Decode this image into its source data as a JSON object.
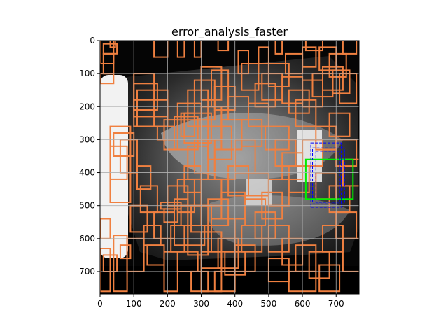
{
  "title": "error_analysis_faster",
  "colors": {
    "prediction_box": "#f08040",
    "ground_truth_box": "#00ee00",
    "match_box": "#0000ff",
    "image_bg": "#050505",
    "grid": "#b0b0b0"
  },
  "axes": {
    "x_ticks": [
      0,
      100,
      200,
      300,
      400,
      500,
      600,
      700
    ],
    "y_ticks": [
      0,
      100,
      200,
      300,
      400,
      500,
      600,
      700
    ],
    "xlim": [
      0,
      768
    ],
    "ylim": [
      768,
      0
    ]
  },
  "ground_truth_boxes": [
    [
      610,
      360,
      750,
      480
    ]
  ],
  "match_boxes": [
    [
      625,
      310,
      715,
      505
    ],
    [
      630,
      325,
      725,
      495
    ],
    [
      640,
      335,
      710,
      490
    ]
  ],
  "prediction_boxes": [
    [
      0,
      0,
      40,
      70
    ],
    [
      30,
      0,
      45,
      20
    ],
    [
      10,
      10,
      50,
      40
    ],
    [
      10,
      40,
      40,
      100
    ],
    [
      0,
      100,
      40,
      130
    ],
    [
      100,
      100,
      160,
      260
    ],
    [
      100,
      130,
      170,
      210
    ],
    [
      110,
      150,
      200,
      260
    ],
    [
      100,
      180,
      200,
      230
    ],
    [
      30,
      260,
      90,
      490
    ],
    [
      40,
      280,
      100,
      350
    ],
    [
      60,
      300,
      110,
      400
    ],
    [
      30,
      320,
      80,
      420
    ],
    [
      190,
      240,
      230,
      330
    ],
    [
      170,
      260,
      220,
      300
    ],
    [
      240,
      220,
      280,
      290
    ],
    [
      220,
      230,
      290,
      330
    ],
    [
      180,
      490,
      240,
      510
    ],
    [
      190,
      510,
      230,
      550
    ],
    [
      160,
      520,
      220,
      600
    ],
    [
      40,
      590,
      80,
      760
    ],
    [
      0,
      630,
      30,
      760
    ],
    [
      10,
      650,
      50,
      700
    ],
    [
      60,
      620,
      90,
      660
    ],
    [
      300,
      80,
      360,
      180
    ],
    [
      330,
      90,
      380,
      200
    ],
    [
      280,
      120,
      340,
      240
    ],
    [
      260,
      150,
      320,
      260
    ],
    [
      230,
      190,
      300,
      240
    ],
    [
      250,
      220,
      330,
      310
    ],
    [
      300,
      200,
      360,
      300
    ],
    [
      320,
      260,
      390,
      360
    ],
    [
      280,
      300,
      340,
      400
    ],
    [
      260,
      320,
      320,
      420
    ],
    [
      250,
      380,
      300,
      460
    ],
    [
      230,
      420,
      280,
      520
    ],
    [
      220,
      480,
      260,
      620
    ],
    [
      240,
      500,
      300,
      560
    ],
    [
      260,
      560,
      320,
      650
    ],
    [
      300,
      580,
      360,
      690
    ],
    [
      330,
      540,
      400,
      640
    ],
    [
      350,
      600,
      410,
      690
    ],
    [
      370,
      640,
      430,
      710
    ],
    [
      400,
      620,
      460,
      700
    ],
    [
      360,
      460,
      430,
      540
    ],
    [
      380,
      380,
      440,
      470
    ],
    [
      400,
      300,
      460,
      400
    ],
    [
      420,
      240,
      480,
      320
    ],
    [
      440,
      190,
      500,
      260
    ],
    [
      460,
      130,
      520,
      200
    ],
    [
      480,
      100,
      540,
      180
    ],
    [
      420,
      70,
      470,
      150
    ],
    [
      500,
      70,
      560,
      140
    ],
    [
      540,
      110,
      600,
      190
    ],
    [
      560,
      150,
      620,
      220
    ],
    [
      580,
      180,
      640,
      260
    ],
    [
      600,
      120,
      660,
      200
    ],
    [
      630,
      100,
      690,
      170
    ],
    [
      660,
      80,
      720,
      150
    ],
    [
      690,
      90,
      740,
      160
    ],
    [
      710,
      100,
      760,
      190
    ],
    [
      600,
      20,
      640,
      80
    ],
    [
      650,
      20,
      700,
      90
    ],
    [
      680,
      40,
      730,
      110
    ],
    [
      550,
      40,
      600,
      100
    ],
    [
      490,
      260,
      560,
      330
    ],
    [
      520,
      300,
      580,
      380
    ],
    [
      540,
      340,
      600,
      420
    ],
    [
      560,
      380,
      620,
      460
    ],
    [
      500,
      420,
      560,
      500
    ],
    [
      480,
      460,
      540,
      540
    ],
    [
      460,
      520,
      520,
      600
    ],
    [
      500,
      560,
      560,
      640
    ],
    [
      540,
      600,
      600,
      680
    ],
    [
      580,
      620,
      640,
      700
    ],
    [
      620,
      640,
      680,
      720
    ],
    [
      660,
      560,
      720,
      640
    ],
    [
      700,
      520,
      760,
      600
    ],
    [
      680,
      440,
      740,
      520
    ],
    [
      640,
      400,
      700,
      480
    ],
    [
      600,
      300,
      660,
      380
    ],
    [
      640,
      260,
      700,
      330
    ],
    [
      680,
      220,
      740,
      290
    ],
    [
      700,
      300,
      760,
      380
    ],
    [
      720,
      360,
      770,
      440
    ],
    [
      720,
      600,
      770,
      700
    ],
    [
      650,
      680,
      710,
      760
    ],
    [
      560,
      700,
      640,
      760
    ],
    [
      500,
      660,
      560,
      730
    ],
    [
      420,
      560,
      480,
      640
    ],
    [
      430,
      480,
      490,
      560
    ],
    [
      440,
      400,
      500,
      470
    ],
    [
      340,
      330,
      400,
      420
    ],
    [
      360,
      240,
      420,
      330
    ],
    [
      380,
      170,
      440,
      240
    ],
    [
      340,
      140,
      400,
      210
    ],
    [
      300,
      420,
      360,
      500
    ],
    [
      320,
      480,
      380,
      560
    ],
    [
      270,
      500,
      330,
      580
    ],
    [
      250,
      560,
      310,
      620
    ],
    [
      200,
      440,
      260,
      500
    ],
    [
      210,
      560,
      250,
      640
    ],
    [
      190,
      640,
      230,
      760
    ],
    [
      230,
      640,
      290,
      700
    ],
    [
      300,
      640,
      360,
      760
    ],
    [
      270,
      700,
      320,
      760
    ],
    [
      340,
      700,
      400,
      760
    ],
    [
      160,
      0,
      200,
      50
    ],
    [
      230,
      0,
      250,
      50
    ],
    [
      280,
      0,
      300,
      50
    ],
    [
      350,
      0,
      380,
      30
    ],
    [
      410,
      30,
      440,
      100
    ],
    [
      470,
      20,
      500,
      70
    ],
    [
      520,
      0,
      540,
      40
    ],
    [
      610,
      0,
      660,
      30
    ],
    [
      720,
      0,
      760,
      40
    ],
    [
      0,
      540,
      30,
      600
    ],
    [
      110,
      380,
      150,
      450
    ],
    [
      120,
      440,
      170,
      520
    ],
    [
      130,
      560,
      180,
      620
    ],
    [
      140,
      620,
      190,
      680
    ],
    [
      80,
      600,
      130,
      700
    ],
    [
      90,
      500,
      140,
      580
    ]
  ]
}
